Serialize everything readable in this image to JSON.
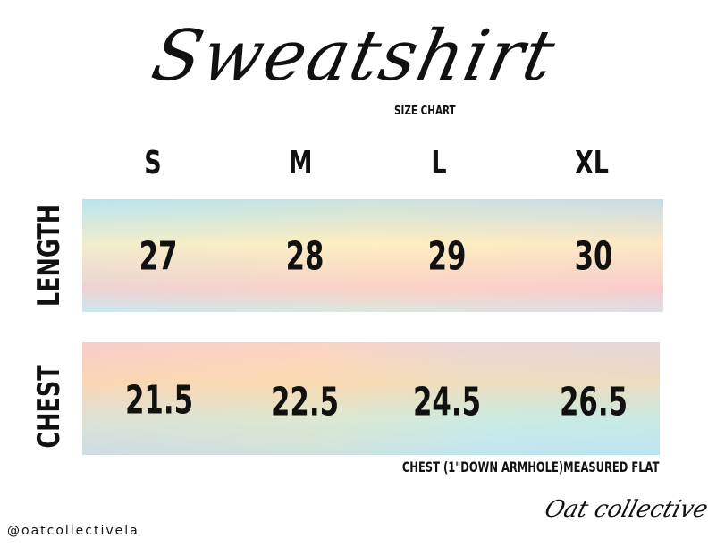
{
  "title": "Sweatshirt",
  "subtitle": "SIZE CHART",
  "sizes": [
    "S",
    "M",
    "L",
    "XL"
  ],
  "rows": [
    {
      "label": "LENGTH",
      "values": [
        "27",
        "28",
        "29",
        "30"
      ]
    },
    {
      "label": "CHEST",
      "values": [
        "21.5",
        "22.5",
        "24.5",
        "26.5"
      ]
    }
  ],
  "note": "CHEST (1\"DOWN ARMHOLE)MEASURED FLAT",
  "handle": "@oatcollectivela",
  "logo": "Oat collective"
}
